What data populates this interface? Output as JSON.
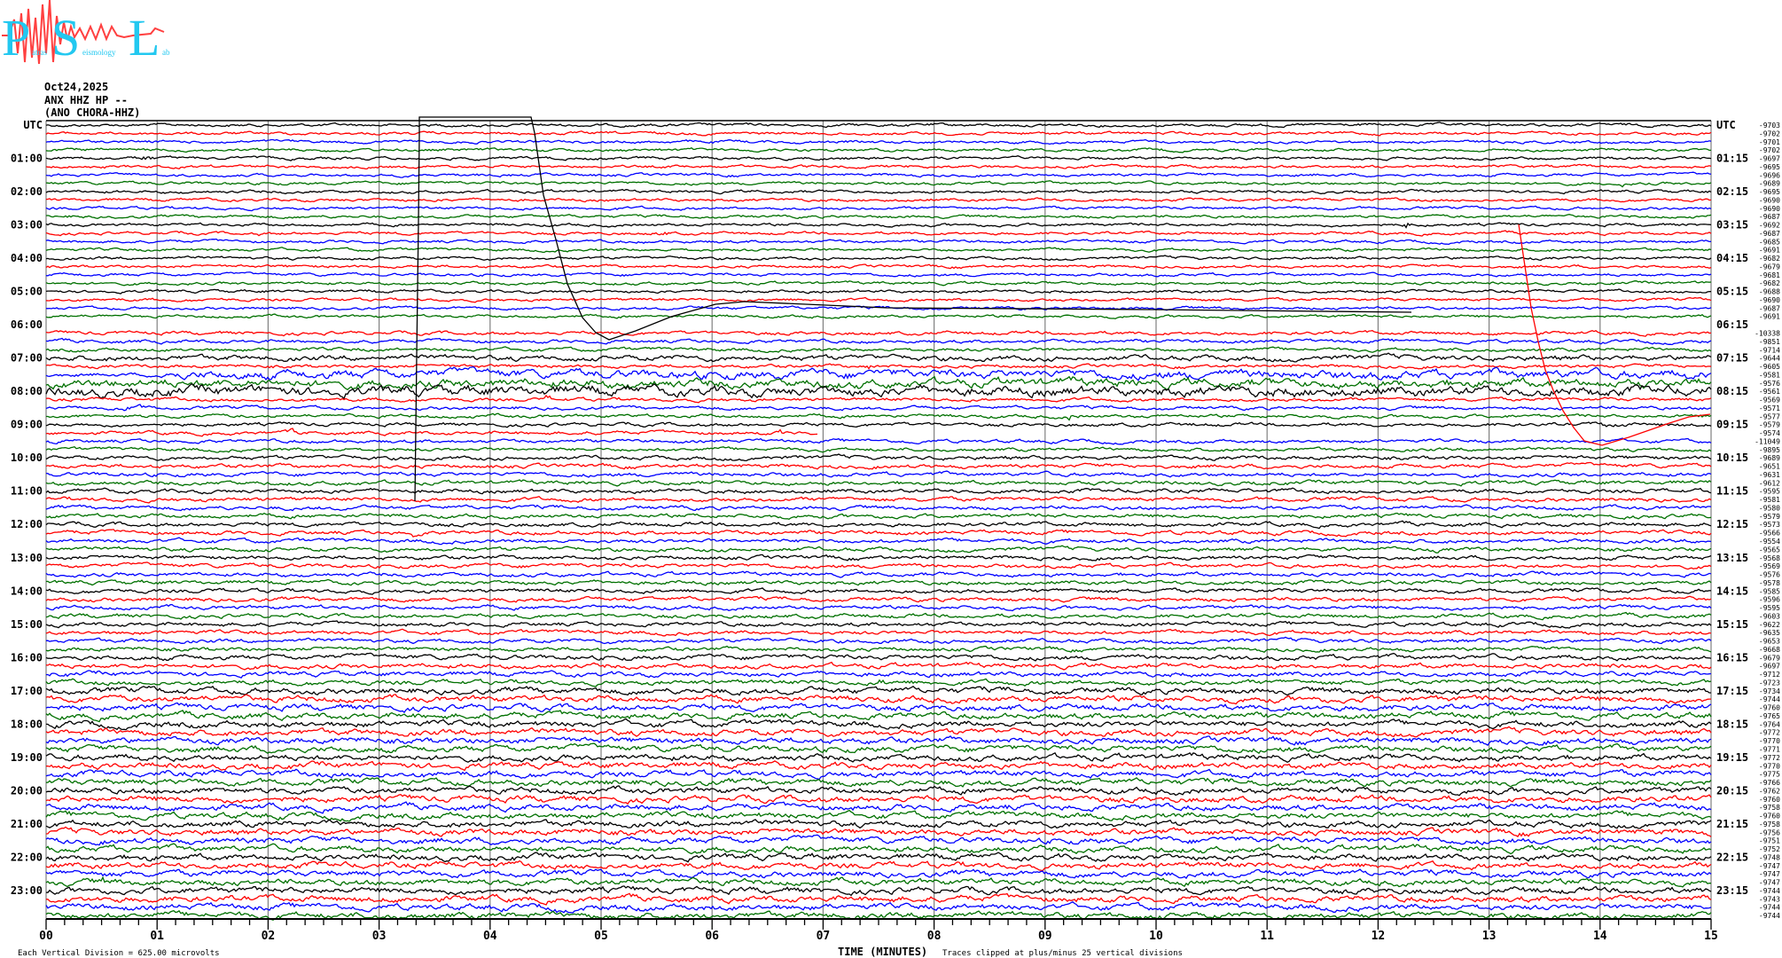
{
  "logo": {
    "big_letters": "PSL",
    "words": [
      "atras",
      "eismology",
      "ab"
    ],
    "text": "Patras Seismology Lab",
    "colors": {
      "letters": "#22c8f0",
      "trace": "#ff4040"
    }
  },
  "header": {
    "date": "Oct24,2025",
    "station": "ANX HHZ HP --",
    "location": "(ANO CHORA-HHZ)"
  },
  "left_labels": [
    "UTC",
    "01:00",
    "02:00",
    "03:00",
    "04:00",
    "05:00",
    "06:00",
    "07:00",
    "08:00",
    "09:00",
    "10:00",
    "11:00",
    "12:00",
    "13:00",
    "14:00",
    "15:00",
    "16:00",
    "17:00",
    "18:00",
    "19:00",
    "20:00",
    "21:00",
    "22:00",
    "23:00"
  ],
  "right_labels": [
    "UTC",
    "01:15",
    "02:15",
    "03:15",
    "04:15",
    "05:15",
    "06:15",
    "07:15",
    "08:15",
    "09:15",
    "10:15",
    "11:15",
    "12:15",
    "13:15",
    "14:15",
    "15:15",
    "16:15",
    "17:15",
    "18:15",
    "19:15",
    "20:15",
    "21:15",
    "22:15",
    "23:15"
  ],
  "trace_offsets": [
    "-9703",
    "-9702",
    "-9701",
    "-9702",
    "-9697",
    "-9695",
    "-9696",
    "-9689",
    "-9695",
    "-9690",
    "-9690",
    "-9687",
    "-9692",
    "-9687",
    "-9685",
    "-9691",
    "-9682",
    "-9679",
    "-9681",
    "-9682",
    "-9688",
    "-9690",
    "-9687",
    "-9691",
    "",
    "-10338",
    "-9851",
    "-9714",
    "-9644",
    "-9605",
    "-9581",
    "-9576",
    "-9561",
    "-9569",
    "-9571",
    "-9577",
    "-9579",
    "-9574",
    "-11049",
    "-9895",
    "-9689",
    "-9651",
    "-9631",
    "-9612",
    "-9595",
    "-9581",
    "-9580",
    "-9579",
    "-9573",
    "-9566",
    "-9554",
    "-9565",
    "-9568",
    "-9569",
    "-9576",
    "-9578",
    "-9585",
    "-9596",
    "-9595",
    "-9603",
    "-9622",
    "-9635",
    "-9653",
    "-9668",
    "-9679",
    "-9697",
    "-9712",
    "-9723",
    "-9734",
    "-9744",
    "-9760",
    "-9765",
    "-9764",
    "-9772",
    "-9770",
    "-9771",
    "-9772",
    "-9770",
    "-9775",
    "-9766",
    "-9762",
    "-9760",
    "-9758",
    "-9760",
    "-9758",
    "-9756",
    "-9751",
    "-9752",
    "-9748",
    "-9747",
    "-9747",
    "-9747",
    "-9744",
    "-9743",
    "-9744",
    "-9744"
  ],
  "trace_colors": [
    "#000000",
    "#ff0000",
    "#0000ff",
    "#007000"
  ],
  "grid_color": "#808080",
  "x_axis": {
    "ticks": [
      "00",
      "01",
      "02",
      "03",
      "04",
      "05",
      "06",
      "07",
      "08",
      "09",
      "10",
      "11",
      "12",
      "13",
      "14",
      "15"
    ],
    "label": "TIME (MINUTES)"
  },
  "footer": {
    "scale": "Each Vertical Division =  625.00 microvolts",
    "clip_note": "Traces clipped at plus/minus 25 vertical divisions"
  }
}
